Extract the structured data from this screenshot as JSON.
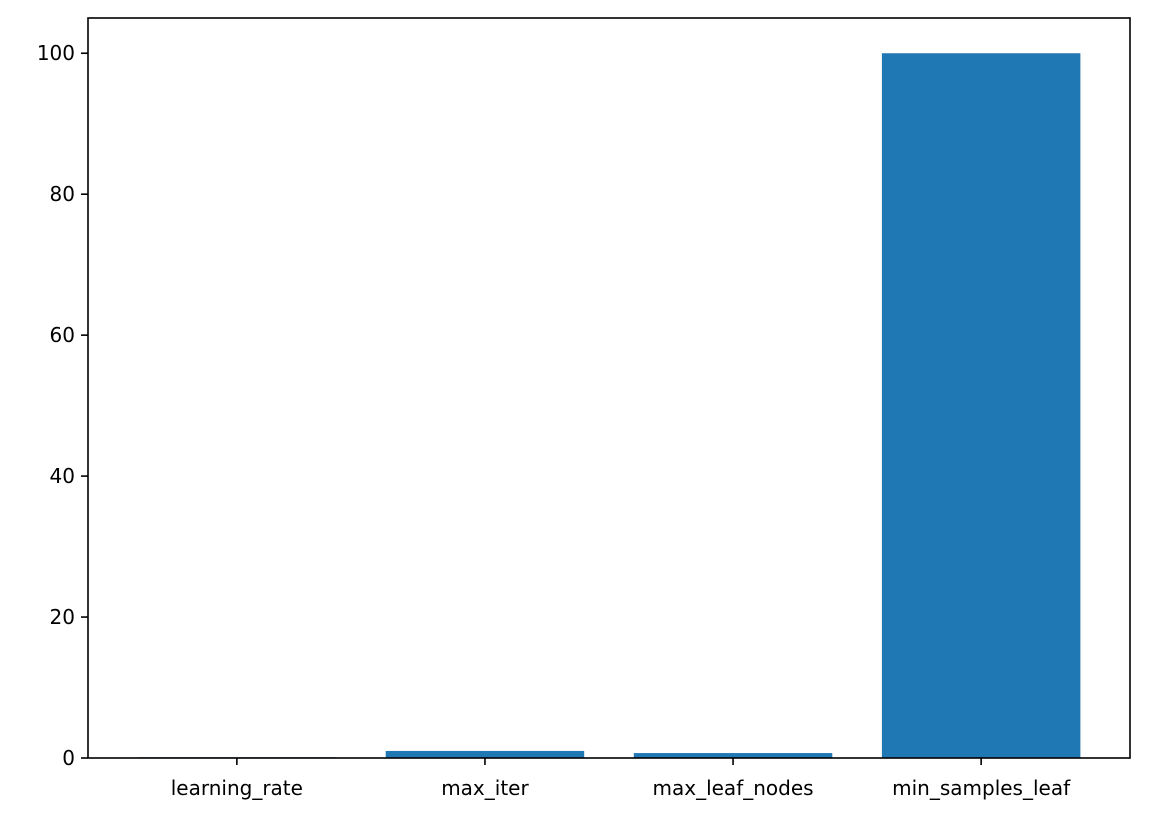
{
  "chart_data": {
    "type": "bar",
    "categories": [
      "learning_rate",
      "max_iter",
      "max_leaf_nodes",
      "min_samples_leaf"
    ],
    "values": [
      0.1,
      1.0,
      0.7,
      100
    ],
    "ylim": [
      0,
      105
    ],
    "yticks": [
      0,
      20,
      40,
      60,
      80,
      100
    ],
    "title": "",
    "xlabel": "",
    "ylabel": "",
    "grid": false,
    "colors": {
      "bar": "#1f77b4",
      "axis": "#000000",
      "background": "#ffffff"
    }
  }
}
